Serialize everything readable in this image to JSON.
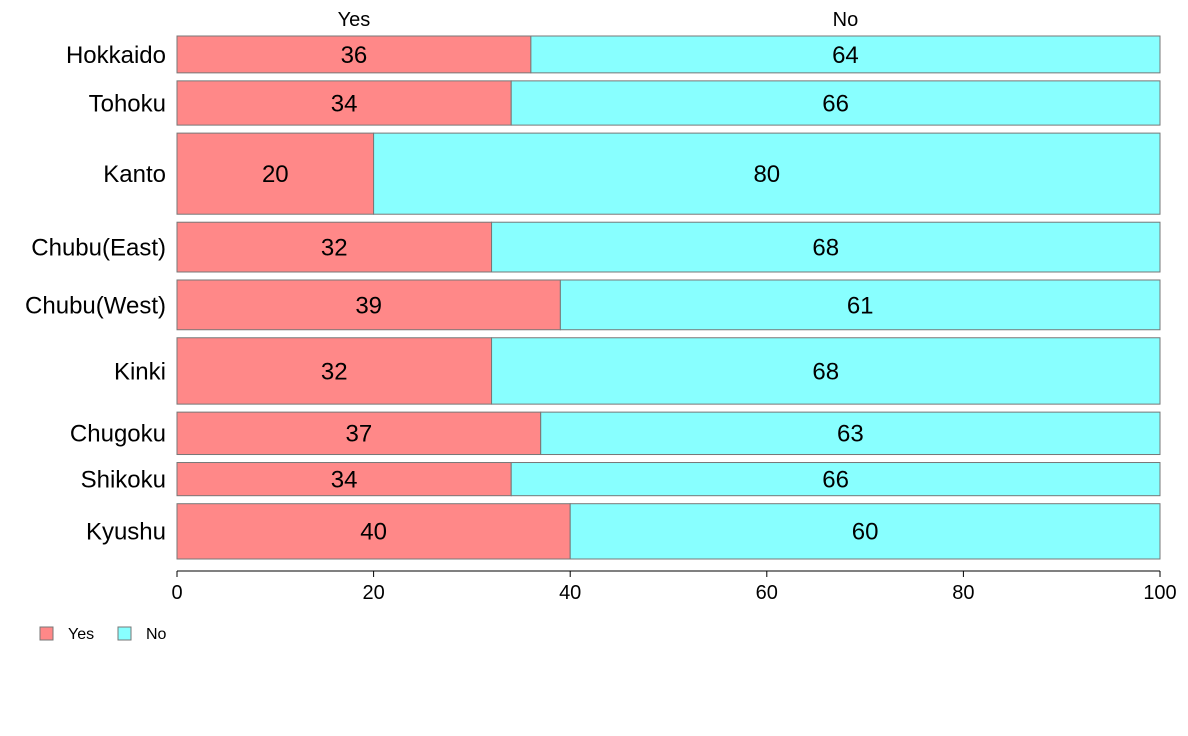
{
  "chart_data": {
    "type": "bar",
    "orientation": "horizontal",
    "stacked": true,
    "column_headers": [
      "Yes",
      "No"
    ],
    "categories": [
      "Hokkaido",
      "Tohoku",
      "Kanto",
      "Chubu(East)",
      "Chubu(West)",
      "Kinki",
      "Chugoku",
      "Shikoku",
      "Kyushu"
    ],
    "relative_bar_heights": [
      1.0,
      1.2,
      2.2,
      1.35,
      1.35,
      1.8,
      1.15,
      0.9,
      1.5
    ],
    "series": [
      {
        "name": "Yes",
        "color": "#ff8888",
        "values": [
          36,
          34,
          20,
          32,
          39,
          32,
          37,
          34,
          40
        ]
      },
      {
        "name": "No",
        "color": "#88ffff",
        "values": [
          64,
          66,
          80,
          68,
          61,
          68,
          63,
          66,
          60
        ]
      }
    ],
    "xlim": [
      0,
      100
    ],
    "xticks": [
      0,
      20,
      40,
      60,
      80,
      100
    ],
    "grid": false,
    "legend": {
      "placement": "bottom-left",
      "entries": [
        "Yes",
        "No"
      ]
    },
    "bar_border_color": "#777777"
  }
}
